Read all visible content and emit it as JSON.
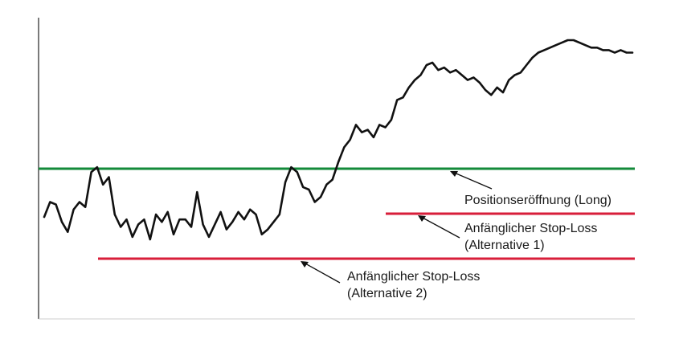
{
  "chart_data": {
    "type": "line",
    "xlim": [
      0,
      100
    ],
    "ylim": [
      0,
      100
    ],
    "grid": false,
    "series": [
      {
        "color": "#111111",
        "x": [
          0,
          1,
          2,
          3,
          4,
          5,
          6,
          7,
          8,
          9,
          10,
          11,
          12,
          13,
          14,
          15,
          16,
          17,
          18,
          19,
          20,
          21,
          22,
          23,
          24,
          25,
          26,
          27,
          28,
          29,
          30,
          31,
          32,
          33,
          34,
          35,
          36,
          37,
          38,
          39,
          40,
          41,
          42,
          43,
          44,
          45,
          46,
          47,
          48,
          49,
          50,
          51,
          52,
          53,
          54,
          55,
          56,
          57,
          58,
          59,
          60,
          61,
          62,
          63,
          64,
          65,
          66,
          67,
          68,
          69,
          70,
          71,
          72,
          73,
          74,
          75,
          76,
          77,
          78,
          79,
          80,
          81,
          82,
          83,
          84,
          85,
          86,
          87,
          88,
          89,
          90,
          91,
          92,
          93,
          94,
          95,
          96,
          97,
          98,
          99,
          100
        ],
        "y": [
          29,
          35,
          34,
          27,
          23,
          32,
          35,
          33,
          47,
          49,
          42,
          45,
          30,
          25,
          28,
          21,
          26,
          28,
          20,
          30,
          27,
          31,
          22,
          28,
          28,
          25,
          39,
          26,
          21,
          26,
          31,
          24,
          27,
          31,
          28,
          32,
          30,
          22,
          24,
          27,
          30,
          43,
          49,
          47,
          41,
          40,
          35,
          37,
          42,
          44,
          51,
          57,
          60,
          66,
          63,
          64,
          61,
          66,
          65,
          68,
          76,
          77,
          81,
          84,
          86,
          90,
          91,
          88,
          89,
          87,
          88,
          86,
          84,
          85,
          83,
          80,
          78,
          81,
          79,
          84,
          86,
          87,
          90,
          93,
          95,
          96,
          97,
          98,
          99,
          100,
          100,
          99,
          98,
          97,
          97,
          96,
          96,
          95,
          96,
          95,
          95
        ]
      }
    ],
    "hlines": [
      {
        "label": "Positionseröffnung (Long)",
        "y": 49.4,
        "color": "#138a3a"
      },
      {
        "label": "Anfänglicher Stop-Loss (Alternative 1)",
        "y": 35.3,
        "color": "#d81e3a"
      },
      {
        "label": "Anfänglicher Stop-Loss (Alternative 2)",
        "y": 21.1,
        "color": "#d81e3a"
      }
    ],
    "annotations": [
      {
        "line1": "Positionseröffnung (Long)",
        "line2": ""
      },
      {
        "line1": "Anfänglicher Stop-Loss",
        "line2": "(Alternative 1)"
      },
      {
        "line1": "Anfänglicher Stop-Loss",
        "line2": "(Alternative 2)"
      }
    ]
  }
}
